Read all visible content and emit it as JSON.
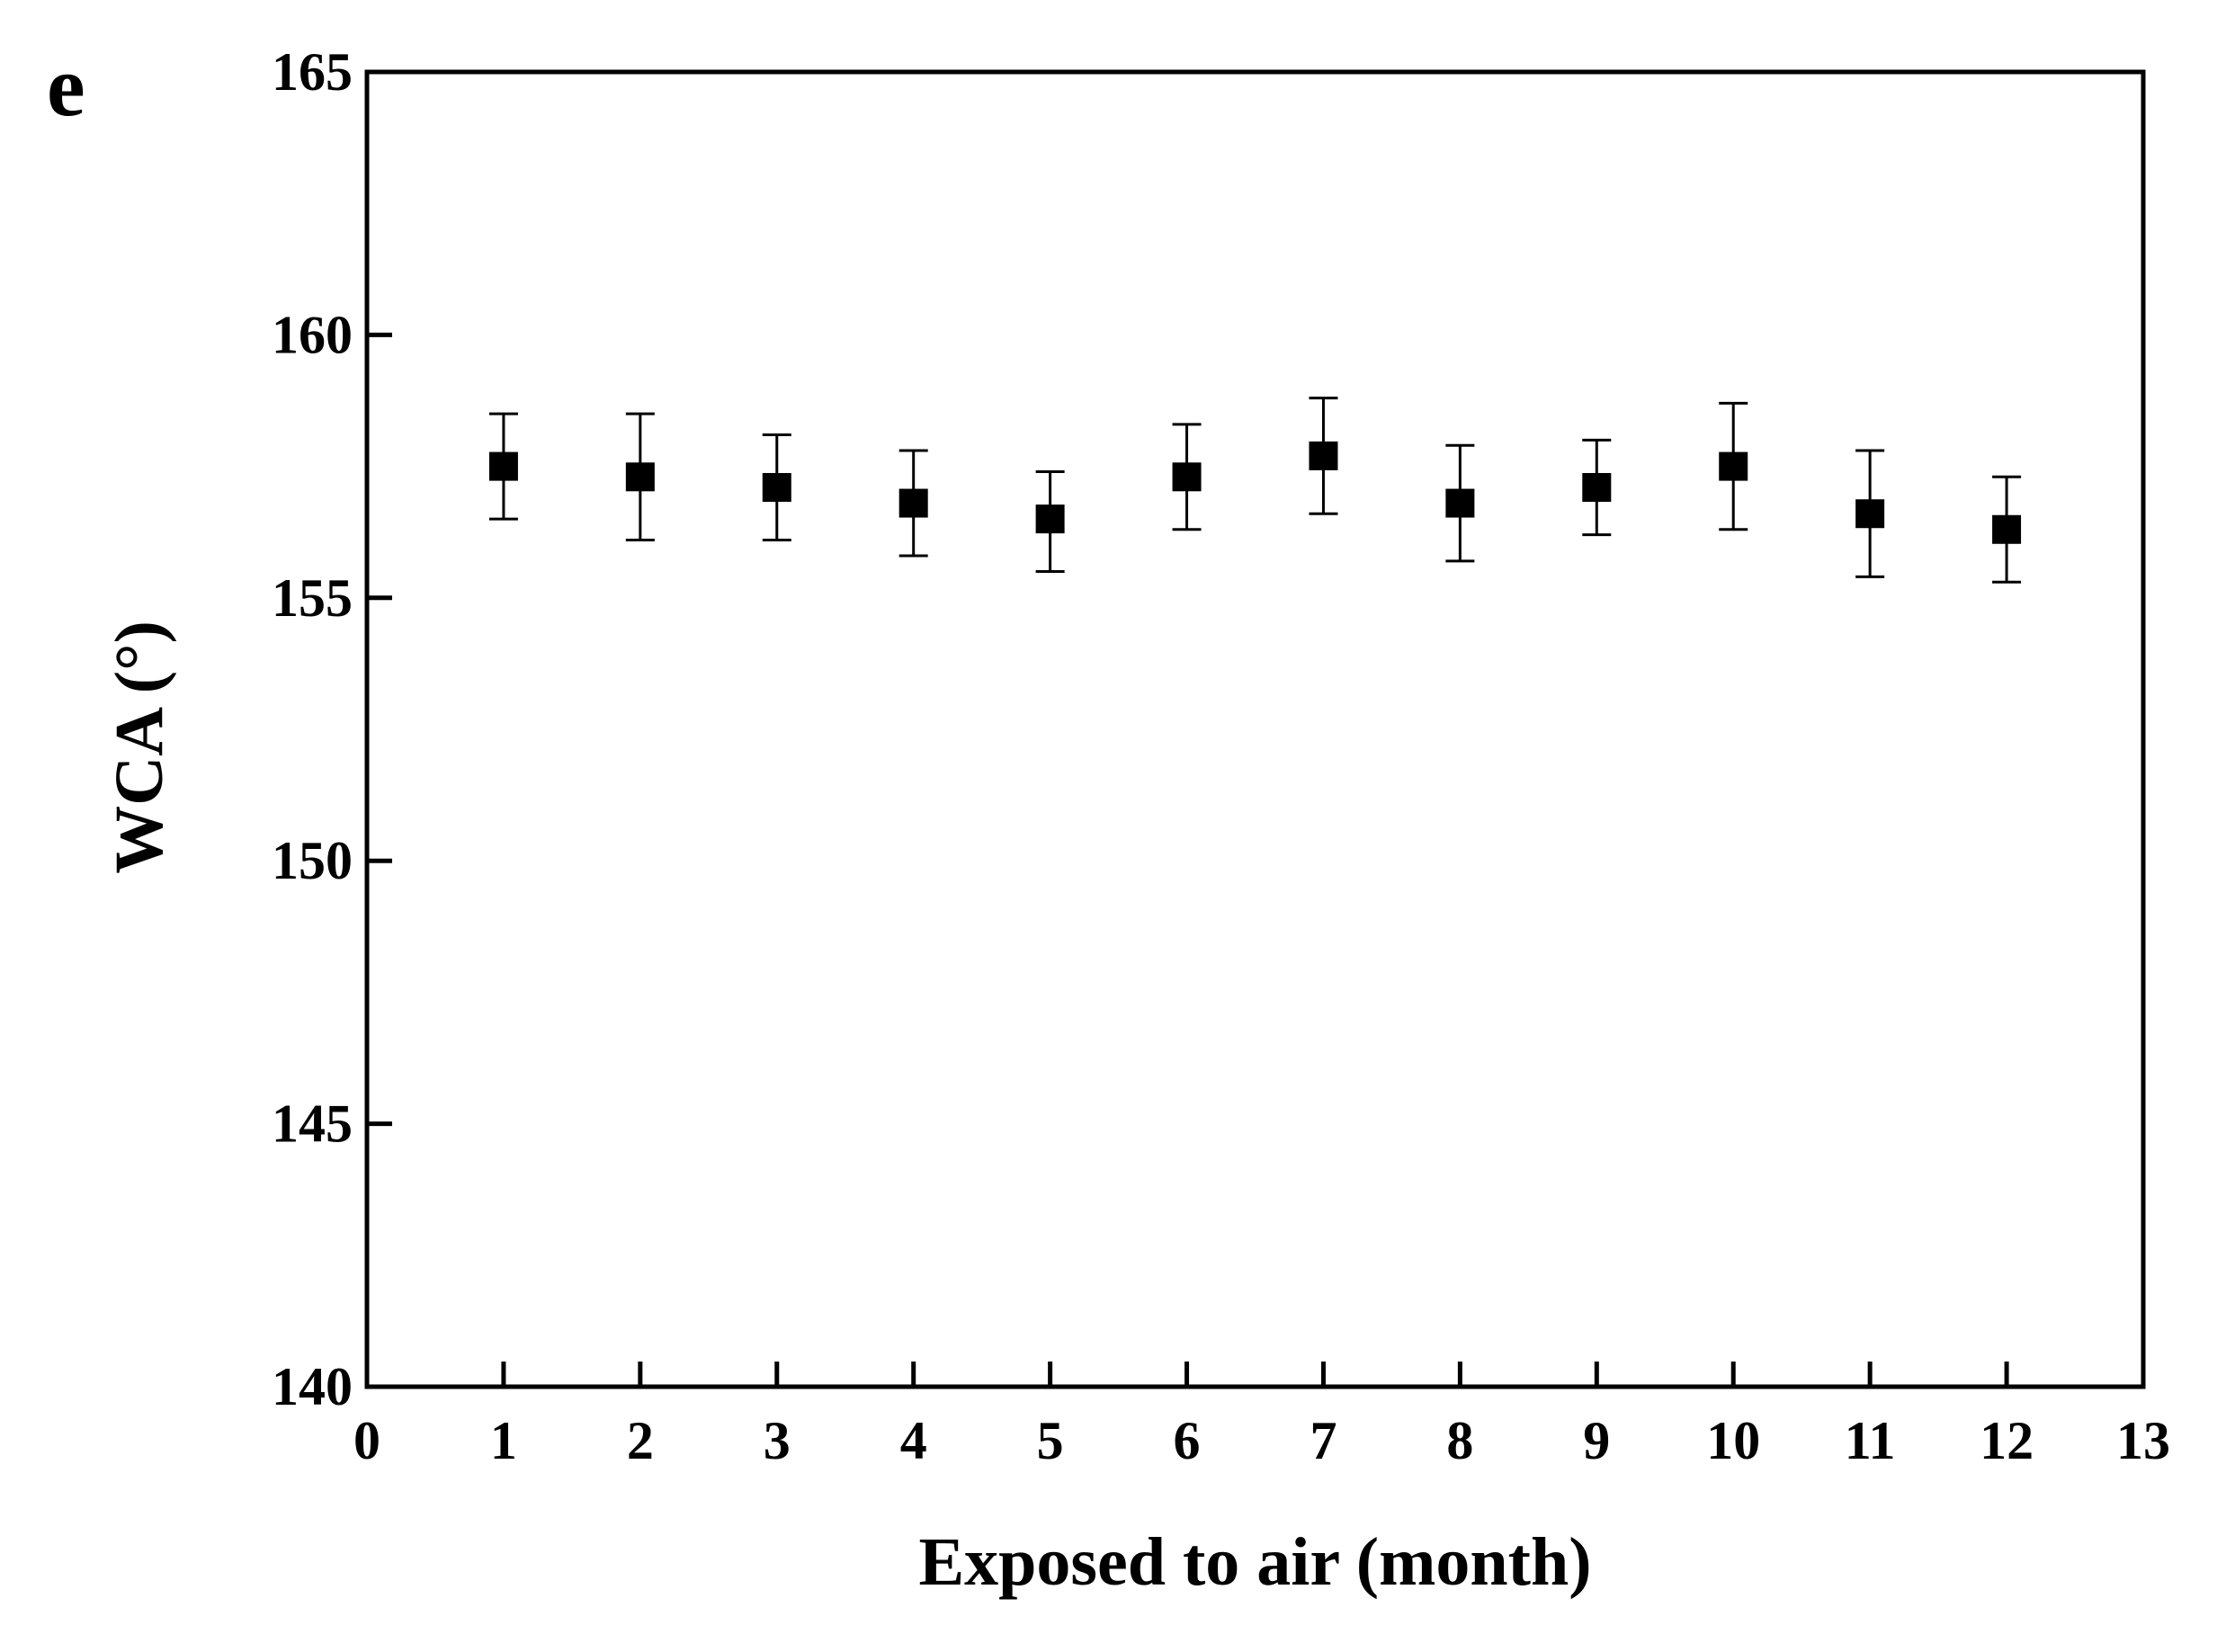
{
  "chart_data": {
    "type": "scatter",
    "panel_label": "e",
    "title": "",
    "xlabel": "Exposed to air (month)",
    "ylabel": "WCA (°)",
    "xlim": [
      0,
      13
    ],
    "ylim": [
      140,
      165
    ],
    "x_ticks": [
      0,
      1,
      2,
      3,
      4,
      5,
      6,
      7,
      8,
      9,
      10,
      11,
      12,
      13
    ],
    "y_ticks": [
      140,
      145,
      150,
      155,
      160,
      165
    ],
    "grid": false,
    "legend": "none",
    "marker": "square",
    "marker_color": "#000000",
    "series": [
      {
        "x": [
          1,
          2,
          3,
          4,
          5,
          6,
          7,
          8,
          9,
          10,
          11,
          12
        ],
        "y": [
          157.5,
          157.3,
          157.1,
          156.8,
          156.5,
          157.3,
          157.7,
          156.8,
          157.1,
          157.5,
          156.6,
          156.3
        ],
        "y_err_upper": [
          158.5,
          158.5,
          158.1,
          157.8,
          157.4,
          158.3,
          158.8,
          157.9,
          158.0,
          158.7,
          157.8,
          157.3
        ],
        "y_err_lower": [
          156.5,
          156.1,
          156.1,
          155.8,
          155.5,
          156.3,
          156.6,
          155.7,
          156.2,
          156.3,
          155.4,
          155.3
        ]
      }
    ]
  }
}
